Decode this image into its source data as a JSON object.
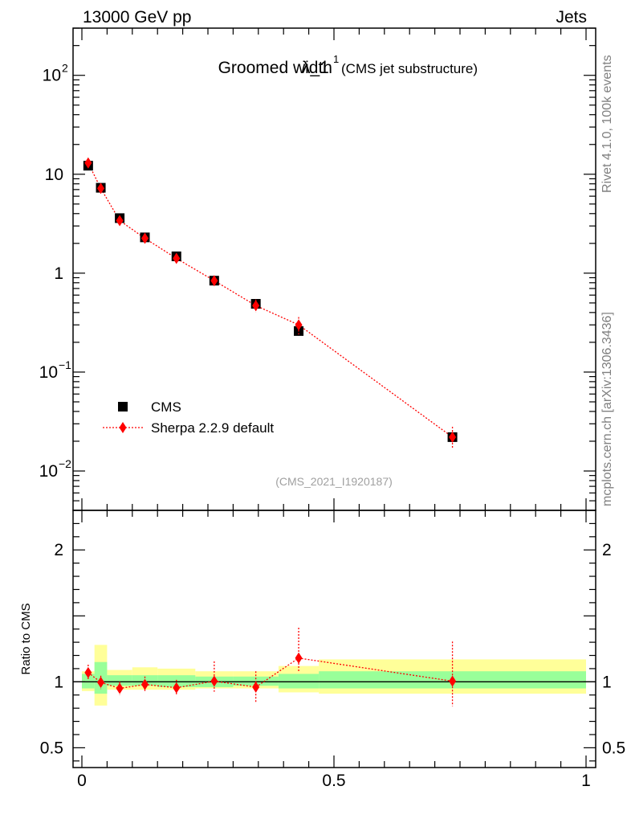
{
  "header": {
    "left": "13000 GeV pp",
    "right": "Jets"
  },
  "side": {
    "rivet": "Rivet 4.1.0,  100k events",
    "mcplots": "mcplots.cern.ch [arXiv:1306.3436]"
  },
  "chart_data": [
    {
      "type": "scatter",
      "panel": "main",
      "title": "Groomed width",
      "title_symbol": "λ_1",
      "title_superscript": "1",
      "subtitle": "(CMS jet substructure)",
      "analysis_id": "(CMS_2021_I1920187)",
      "yscale": "log",
      "xlim": [
        0,
        1
      ],
      "ylim": [
        0.004,
        300
      ],
      "y_ticks": [
        {
          "value": 100,
          "base": "10",
          "exp": "2"
        },
        {
          "value": 10,
          "base": "10",
          "exp": ""
        },
        {
          "value": 1,
          "base": "1",
          "exp": ""
        },
        {
          "value": 0.1,
          "base": "10",
          "exp": "−1"
        },
        {
          "value": 0.01,
          "base": "10",
          "exp": "−2"
        }
      ],
      "legend": {
        "position": "bottom-left",
        "entries": [
          "CMS",
          "Sherpa 2.2.9 default"
        ]
      },
      "x_edges": [
        0,
        0.025,
        0.05,
        0.1,
        0.15,
        0.225,
        0.3,
        0.39,
        0.47,
        1.0
      ],
      "series": [
        {
          "name": "CMS",
          "color": "#000000",
          "marker": "square",
          "x": [
            0.0125,
            0.0375,
            0.075,
            0.125,
            0.1875,
            0.2625,
            0.345,
            0.43,
            0.735
          ],
          "values": [
            12.2,
            7.3,
            3.6,
            2.3,
            1.48,
            0.84,
            0.49,
            0.26,
            0.022
          ]
        },
        {
          "name": "Sherpa 2.2.9 default",
          "color": "#ff0000",
          "marker": "diamond",
          "line": "dotted",
          "x": [
            0.0125,
            0.0375,
            0.075,
            0.125,
            0.1875,
            0.2625,
            0.345,
            0.43,
            0.735
          ],
          "values": [
            13.0,
            7.2,
            3.4,
            2.25,
            1.41,
            0.84,
            0.47,
            0.3,
            0.022
          ],
          "err_up": [
            0.8,
            0.45,
            0.25,
            0.18,
            0.12,
            0.08,
            0.07,
            0.06,
            0.006
          ],
          "err_down": [
            0.8,
            0.45,
            0.25,
            0.18,
            0.12,
            0.08,
            0.07,
            0.06,
            0.005
          ]
        }
      ]
    },
    {
      "type": "scatter",
      "panel": "ratio",
      "ylabel": "Ratio to CMS",
      "xlim": [
        0,
        1
      ],
      "ylim": [
        0.35,
        2.3
      ],
      "y_ticks": [
        "0.5",
        "1",
        "2"
      ],
      "y_tick_values": [
        0.5,
        1,
        2
      ],
      "x_ticks": [
        "0",
        "0.5",
        "1"
      ],
      "x_tick_values": [
        0,
        0.5,
        1
      ],
      "bands": {
        "stat_color": "#99ff99",
        "total_color": "#ffff99",
        "x_edges": [
          0,
          0.025,
          0.05,
          0.1,
          0.15,
          0.225,
          0.3,
          0.39,
          0.47,
          1.0
        ],
        "inner_low": [
          0.95,
          0.91,
          0.97,
          0.97,
          0.96,
          0.96,
          0.97,
          0.95,
          0.95
        ],
        "inner_high": [
          1.06,
          1.15,
          1.05,
          1.05,
          1.05,
          1.04,
          1.04,
          1.06,
          1.08
        ],
        "outer_low": [
          0.93,
          0.82,
          0.94,
          0.94,
          0.94,
          0.95,
          0.95,
          0.92,
          0.91
        ],
        "outer_high": [
          1.08,
          1.28,
          1.09,
          1.11,
          1.1,
          1.08,
          1.08,
          1.12,
          1.17
        ]
      },
      "series": [
        {
          "name": "Sherpa 2.2.9 default",
          "color": "#ff0000",
          "x": [
            0.0125,
            0.0375,
            0.075,
            0.125,
            0.1875,
            0.2625,
            0.345,
            0.43,
            0.735
          ],
          "values": [
            1.07,
            0.996,
            0.95,
            0.98,
            0.955,
            1.005,
            0.96,
            1.18,
            1.005
          ],
          "err_up": [
            0.06,
            0.05,
            0.05,
            0.06,
            0.06,
            0.15,
            0.12,
            0.23,
            0.3
          ],
          "err_down": [
            0.06,
            0.05,
            0.05,
            0.06,
            0.06,
            0.08,
            0.12,
            0.1,
            0.19
          ]
        }
      ]
    }
  ]
}
